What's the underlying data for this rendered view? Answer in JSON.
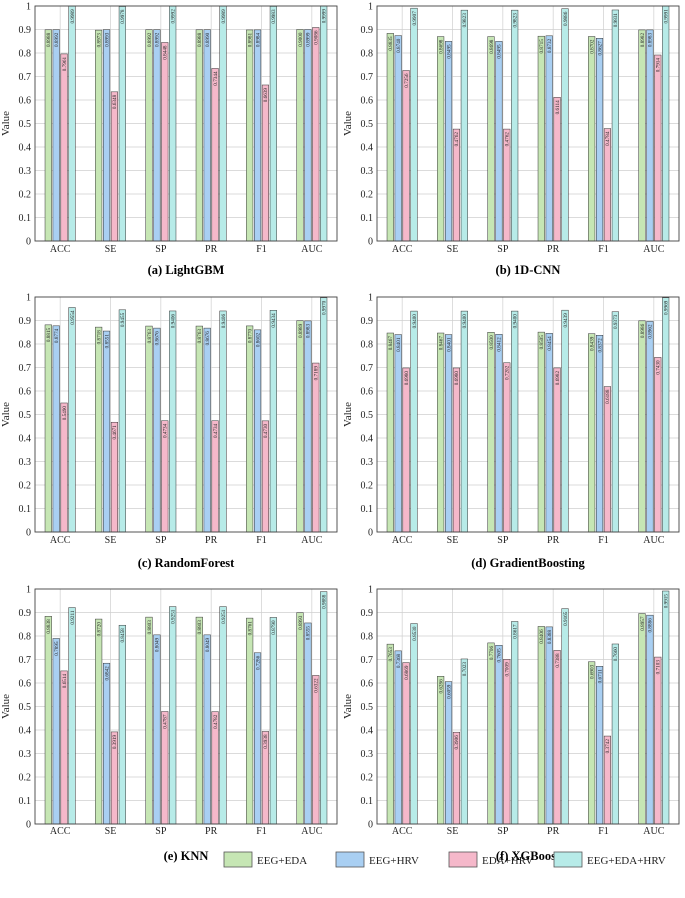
{
  "colors": {
    "series": [
      "#c6e6b4",
      "#a9cff2",
      "#f5b8ca",
      "#b7ebe8"
    ],
    "stroke": "#333333",
    "grid": "#cfcfcf"
  },
  "legend": {
    "labels": [
      "EEG+EDA",
      "EEG+HRV",
      "EDA+HRV",
      "EEG+EDA+HRV"
    ]
  },
  "chart_data": [
    {
      "type": "bar",
      "caption": "(a)  LightGBM",
      "ylabel": "Value",
      "ylim": [
        0,
        1
      ],
      "yticks": [
        "0",
        "0.1",
        "0.2",
        "0.3",
        "0.4",
        "0.5",
        "0.6",
        "0.7",
        "0.8",
        "0.9",
        "1"
      ],
      "categories": [
        "ACC",
        "SE",
        "SP",
        "PR",
        "F1",
        "AUC"
      ],
      "series": [
        {
          "name": "EEG+EDA",
          "values": [
            0.8988,
            0.8973,
            0.8992,
            0.8988,
            0.8981,
            0.9
          ]
        },
        {
          "name": "EEG+HRV",
          "values": [
            0.8992,
            0.8993,
            0.8992,
            0.899,
            0.8984,
            0.8999
          ]
        },
        {
          "name": "EDA+HRV",
          "values": [
            0.7961,
            0.6348,
            0.8448,
            0.7344,
            0.6639,
            0.9086
          ]
        },
        {
          "name": "EEG+EDA+HRV",
          "values": [
            0.9989,
            0.9978,
            0.9992,
            0.9989,
            0.9983,
            0.9999
          ]
        }
      ],
      "data_labels": [
        [
          "0.8988",
          "0.8973",
          "0.8992",
          "0.8988",
          "0.8981",
          "0.9000"
        ],
        [
          "0.8992",
          "0.8993",
          "0.8992",
          "0.8990",
          "0.8984",
          "0.8999"
        ],
        [
          "0.7961",
          "0.6348",
          "0.8448",
          "0.7344",
          "0.6639",
          "0.9086"
        ],
        [
          "0.9989",
          "0.9978",
          "0.9992",
          "0.9989",
          "0.9983",
          "0.9999"
        ]
      ]
    },
    {
      "type": "bar",
      "caption": "(b)  1D-CNN",
      "ylabel": "Value",
      "ylim": [
        0,
        1
      ],
      "yticks": [
        "0",
        "0.1",
        "0.2",
        "0.3",
        "0.4",
        "0.5",
        "0.6",
        "0.7",
        "0.8",
        "0.9",
        "1"
      ],
      "categories": [
        "ACC",
        "SE",
        "SP",
        "PR",
        "F1",
        "AUC"
      ],
      "series": [
        {
          "name": "EEG+EDA",
          "values": [
            0.8835,
            0.8698,
            0.8698,
            0.8715,
            0.8702,
            0.8982
          ]
        },
        {
          "name": "EEG+HRV",
          "values": [
            0.874,
            0.8495,
            0.8495,
            0.8732,
            0.8627,
            0.8983
          ]
        },
        {
          "name": "EDA+HRV",
          "values": [
            0.7256,
            0.4762,
            0.4762,
            0.6114,
            0.4784,
            0.7914
          ]
        },
        {
          "name": "EEG+EDA+HRV",
          "values": [
            0.9907,
            0.9823,
            0.9823,
            0.9886,
            0.9831,
            0.9991
          ]
        }
      ],
      "data_labels": [
        [
          "0.8835",
          "0.8698",
          "0.8698",
          "0.8715",
          "0.8702",
          "0.8982"
        ],
        [
          "0.8740",
          "0.8495",
          "0.8495",
          "0.8732",
          "0.8627",
          "0.8983"
        ],
        [
          "0.7256",
          "0.4762",
          "0.4762",
          "0.6114",
          "0.4784",
          "0.7914"
        ],
        [
          "0.9907",
          "0.9823",
          "0.9823",
          "0.9886",
          "0.9831",
          "0.9991"
        ]
      ]
    },
    {
      "type": "bar",
      "caption": "(c)  RandomForest",
      "ylabel": "Value",
      "ylim": [
        0,
        1
      ],
      "yticks": [
        "0",
        "0.1",
        "0.2",
        "0.3",
        "0.4",
        "0.5",
        "0.6",
        "0.7",
        "0.8",
        "0.9",
        "1"
      ],
      "categories": [
        "ACC",
        "SE",
        "SP",
        "PR",
        "F1",
        "AUC"
      ],
      "series": [
        {
          "name": "EEG+EDA",
          "values": [
            0.8815,
            0.8718,
            0.8763,
            0.8763,
            0.877,
            0.8989
          ]
        },
        {
          "name": "EEG+HRV",
          "values": [
            0.8774,
            0.8551,
            0.8676,
            0.8676,
            0.8602,
            0.8983
          ]
        },
        {
          "name": "EDA+HRV",
          "values": [
            0.549,
            0.4671,
            0.4734,
            0.4734,
            0.473,
            0.7189
          ]
        },
        {
          "name": "EEG+EDA+HRV",
          "values": [
            0.9554,
            0.9455,
            0.9406,
            0.9406,
            0.9434,
            0.997
          ]
        }
      ],
      "data_labels": [
        [
          "0.8815",
          "0.8718",
          "0.8763",
          "0.8763",
          "0.8770",
          "0.8989"
        ],
        [
          "0.8774",
          "0.8551",
          "0.8676",
          "0.8676",
          "0.8602",
          "0.8983"
        ],
        [
          "0.5490",
          "0.4671",
          "0.4734",
          "0.4734",
          "0.4730",
          "0.7189"
        ],
        [
          "0.9554",
          "0.9455",
          "0.9406",
          "0.9406",
          "0.9434",
          "0.9970"
        ]
      ]
    },
    {
      "type": "bar",
      "caption": "(d)  GradientBoosting",
      "ylabel": "Value",
      "ylim": [
        0,
        1
      ],
      "yticks": [
        "0",
        "0.1",
        "0.2",
        "0.3",
        "0.4",
        "0.5",
        "0.6",
        "0.7",
        "0.8",
        "0.9",
        "1"
      ],
      "categories": [
        "ACC",
        "SE",
        "SP",
        "PR",
        "F1",
        "AUC"
      ],
      "series": [
        {
          "name": "EEG+EDA",
          "values": [
            0.8467,
            0.8467,
            0.85,
            0.8505,
            0.8439,
            0.8986
          ]
        },
        {
          "name": "EEG+HRV",
          "values": [
            0.8401,
            0.8401,
            0.8412,
            0.8454,
            0.8372,
            0.8962
          ]
        },
        {
          "name": "EDA+HRV",
          "values": [
            0.698,
            0.698,
            0.7202,
            0.6982,
            0.6188,
            0.743
          ]
        },
        {
          "name": "EEG+EDA+HRV",
          "values": [
            0.94,
            0.94,
            0.94,
            0.9439,
            0.9373,
            0.9969
          ]
        }
      ],
      "data_labels": [
        [
          "0.8467",
          "0.8467",
          "0.8500",
          "0.8505",
          "0.8439",
          "0.8986"
        ],
        [
          "0.8401",
          "0.8401",
          "0.8412",
          "0.8454",
          "0.8372",
          "0.8962"
        ],
        [
          "0.6980",
          "0.6980",
          "0.7202",
          "0.6982",
          "0.6188",
          "0.7430"
        ],
        [
          "0.9400",
          "0.9400",
          "0.9400",
          "0.9439",
          "0.9373",
          "0.9969"
        ]
      ]
    },
    {
      "type": "bar",
      "caption": "(e)  KNN",
      "ylabel": "Value",
      "ylim": [
        0,
        1
      ],
      "yticks": [
        "0",
        "0.1",
        "0.2",
        "0.3",
        "0.4",
        "0.5",
        "0.6",
        "0.7",
        "0.8",
        "0.9",
        "1"
      ],
      "categories": [
        "ACC",
        "SE",
        "SP",
        "PR",
        "F1",
        "AUC"
      ],
      "series": [
        {
          "name": "EEG+EDA",
          "values": [
            0.8838,
            0.872,
            0.8803,
            0.8803,
            0.8761,
            0.8993
          ]
        },
        {
          "name": "EEG+HRV",
          "values": [
            0.7895,
            0.6842,
            0.8049,
            0.8049,
            0.7286,
            0.8555
          ]
        },
        {
          "name": "EDA+HRV",
          "values": [
            0.6514,
            0.3919,
            0.4787,
            0.4782,
            0.3938,
            0.6322
          ]
        },
        {
          "name": "EEG+EDA+HRV",
          "values": [
            0.9211,
            0.8458,
            0.9251,
            0.9251,
            0.879,
            0.9888
          ]
        }
      ],
      "data_labels": [
        [
          "0.8838",
          "0.8720",
          "0.8803",
          "0.8803",
          "0.8761",
          "0.8993"
        ],
        [
          "0.7895",
          "0.6842",
          "0.8049",
          "0.8049",
          "0.7286",
          "0.8555"
        ],
        [
          "0.6514",
          "0.3919",
          "0.4787",
          "0.4782",
          "0.3938",
          "0.6322"
        ],
        [
          "0.9211",
          "0.8458",
          "0.9251",
          "0.9251",
          "0.8790",
          "0.9888"
        ]
      ]
    },
    {
      "type": "bar",
      "caption": "(f)  XGBoost",
      "ylabel": "Value",
      "ylim": [
        0,
        1
      ],
      "yticks": [
        "0",
        "0.1",
        "0.2",
        "0.3",
        "0.4",
        "0.5",
        "0.6",
        "0.7",
        "0.8",
        "0.9",
        "1"
      ],
      "categories": [
        "ACC",
        "SE",
        "SP",
        "PR",
        "F1",
        "AUC"
      ],
      "series": [
        {
          "name": "EEG+EDA",
          "values": [
            0.7653,
            0.6286,
            0.7706,
            0.8406,
            0.6903,
            0.8957
          ]
        },
        {
          "name": "EEG+HRV",
          "values": [
            0.7368,
            0.6059,
            0.7605,
            0.8388,
            0.6711,
            0.8886
          ]
        },
        {
          "name": "EDA+HRV",
          "values": [
            0.6869,
            0.3906,
            0.7009,
            0.7388,
            0.3742,
            0.7103
          ]
        },
        {
          "name": "EEG+EDA+HRV",
          "values": [
            0.853,
            0.7023,
            0.8617,
            0.9165,
            0.766,
            0.9915
          ]
        }
      ],
      "data_labels": [
        [
          "0.7653",
          "0.6286",
          "0.7706",
          "0.8406",
          "0.6903",
          "0.8957"
        ],
        [
          "0.7368",
          "0.6059",
          "0.7605",
          "0.8388",
          "0.6711",
          "0.8886"
        ],
        [
          "0.6869",
          "0.3906",
          "0.7009",
          "0.7388",
          "0.3742",
          "0.7103"
        ],
        [
          "0.8530",
          "0.7023",
          "0.8617",
          "0.9165",
          "0.7660",
          "0.9915"
        ]
      ]
    }
  ]
}
